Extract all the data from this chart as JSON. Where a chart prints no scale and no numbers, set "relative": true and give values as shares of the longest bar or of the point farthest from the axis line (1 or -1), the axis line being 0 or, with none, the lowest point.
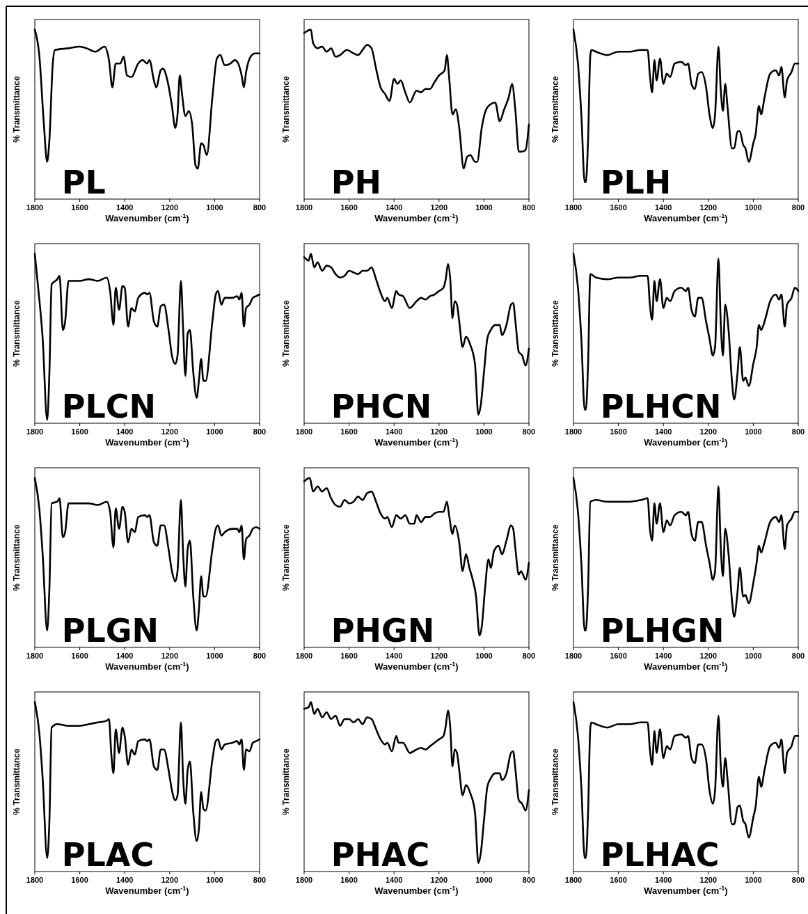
{
  "chart_data": [
    {
      "type": "line",
      "title": "PL",
      "xlabel": "Wavenumber (cm$^{-1}$)",
      "ylabel": "% Transmittance",
      "relative": true,
      "xlim": [
        1800,
        800
      ],
      "xticks": [
        1800,
        1600,
        1400,
        1200,
        1000,
        800
      ],
      "grid": false,
      "x": [
        1800,
        1780,
        1760,
        1745,
        1735,
        1720,
        1710,
        1650,
        1600,
        1570,
        1530,
        1490,
        1470,
        1455,
        1440,
        1420,
        1405,
        1390,
        1370,
        1340,
        1320,
        1300,
        1290,
        1270,
        1260,
        1240,
        1230,
        1210,
        1190,
        1175,
        1165,
        1155,
        1145,
        1130,
        1115,
        1100,
        1085,
        1075,
        1060,
        1050,
        1035,
        1010,
        990,
        975,
        955,
        930,
        910,
        895,
        880,
        870,
        860,
        840,
        820,
        800
      ],
      "series": [
        {
          "color": "#000000",
          "values": [
            1.0,
            0.85,
            0.45,
            0.22,
            0.35,
            0.8,
            0.88,
            0.89,
            0.9,
            0.89,
            0.87,
            0.9,
            0.82,
            0.66,
            0.8,
            0.8,
            0.84,
            0.73,
            0.72,
            0.8,
            0.82,
            0.8,
            0.82,
            0.7,
            0.66,
            0.76,
            0.77,
            0.7,
            0.55,
            0.42,
            0.5,
            0.73,
            0.62,
            0.49,
            0.52,
            0.44,
            0.2,
            0.18,
            0.33,
            0.32,
            0.26,
            0.6,
            0.83,
            0.85,
            0.79,
            0.8,
            0.82,
            0.8,
            0.73,
            0.66,
            0.75,
            0.84,
            0.86,
            0.86
          ]
        }
      ]
    },
    {
      "type": "line",
      "title": "PH",
      "xlabel": "Wavenumber (cm$^{-1}$)",
      "ylabel": "% Transmittance",
      "relative": true,
      "xlim": [
        1800,
        800
      ],
      "xticks": [
        1800,
        1600,
        1400,
        1200,
        1000,
        800
      ],
      "grid": false,
      "x": [
        1800,
        1770,
        1760,
        1740,
        1720,
        1700,
        1680,
        1660,
        1640,
        1610,
        1580,
        1560,
        1540,
        1520,
        1500,
        1480,
        1460,
        1440,
        1420,
        1400,
        1385,
        1370,
        1350,
        1330,
        1300,
        1280,
        1260,
        1240,
        1220,
        1200,
        1175,
        1165,
        1155,
        1140,
        1125,
        1110,
        1090,
        1075,
        1060,
        1040,
        1030,
        1010,
        990,
        970,
        950,
        930,
        910,
        890,
        875,
        860,
        845,
        830,
        815,
        800
      ],
      "series": [
        {
          "color": "#000000",
          "values": [
            0.98,
            1.0,
            0.92,
            0.89,
            0.9,
            0.87,
            0.89,
            0.84,
            0.85,
            0.88,
            0.86,
            0.85,
            0.88,
            0.91,
            0.89,
            0.77,
            0.66,
            0.62,
            0.58,
            0.71,
            0.68,
            0.7,
            0.63,
            0.57,
            0.64,
            0.63,
            0.65,
            0.65,
            0.69,
            0.73,
            0.76,
            0.85,
            0.72,
            0.5,
            0.53,
            0.42,
            0.18,
            0.25,
            0.26,
            0.22,
            0.22,
            0.42,
            0.53,
            0.56,
            0.57,
            0.46,
            0.53,
            0.6,
            0.68,
            0.52,
            0.28,
            0.28,
            0.29,
            0.44
          ]
        }
      ]
    },
    {
      "type": "line",
      "title": "PLH",
      "xlabel": "Wavenumber (cm$^{-1}$)",
      "ylabel": "% Transmittance",
      "relative": true,
      "xlim": [
        1800,
        800
      ],
      "xticks": [
        1800,
        1600,
        1400,
        1200,
        1000,
        800
      ],
      "grid": false,
      "x": [
        1800,
        1780,
        1765,
        1750,
        1745,
        1735,
        1725,
        1720,
        1700,
        1650,
        1600,
        1550,
        1500,
        1470,
        1460,
        1450,
        1440,
        1430,
        1415,
        1400,
        1385,
        1370,
        1350,
        1320,
        1300,
        1290,
        1275,
        1260,
        1245,
        1230,
        1210,
        1195,
        1180,
        1170,
        1155,
        1145,
        1135,
        1125,
        1115,
        1095,
        1085,
        1070,
        1060,
        1045,
        1035,
        1020,
        1000,
        990,
        975,
        965,
        950,
        925,
        900,
        885,
        875,
        860,
        850,
        830,
        815,
        800
      ],
      "series": [
        {
          "color": "#000000",
          "values": [
            1.0,
            0.8,
            0.5,
            0.1,
            0.1,
            0.35,
            0.85,
            0.88,
            0.87,
            0.85,
            0.87,
            0.87,
            0.88,
            0.88,
            0.73,
            0.63,
            0.82,
            0.7,
            0.83,
            0.68,
            0.74,
            0.72,
            0.8,
            0.81,
            0.79,
            0.8,
            0.68,
            0.65,
            0.74,
            0.75,
            0.66,
            0.5,
            0.42,
            0.5,
            0.9,
            0.65,
            0.52,
            0.68,
            0.55,
            0.3,
            0.3,
            0.4,
            0.4,
            0.32,
            0.3,
            0.22,
            0.33,
            0.38,
            0.55,
            0.5,
            0.6,
            0.74,
            0.76,
            0.73,
            0.78,
            0.6,
            0.7,
            0.75,
            0.8,
            0.8
          ]
        }
      ]
    },
    {
      "type": "line",
      "title": "PLCN",
      "xlabel": "Wavenumber (cm$^{-1}$)",
      "ylabel": "% Transmittance",
      "relative": true,
      "xlim": [
        1800,
        800
      ],
      "xticks": [
        1800,
        1600,
        1400,
        1200,
        1000,
        800
      ],
      "grid": false,
      "x": [
        1800,
        1785,
        1765,
        1745,
        1735,
        1725,
        1700,
        1690,
        1675,
        1665,
        1650,
        1600,
        1560,
        1520,
        1480,
        1465,
        1450,
        1440,
        1425,
        1410,
        1400,
        1385,
        1370,
        1355,
        1340,
        1310,
        1300,
        1290,
        1270,
        1255,
        1240,
        1225,
        1205,
        1190,
        1175,
        1165,
        1150,
        1140,
        1130,
        1120,
        1110,
        1095,
        1080,
        1070,
        1060,
        1050,
        1040,
        1010,
        995,
        985,
        970,
        955,
        920,
        900,
        890,
        880,
        870,
        860,
        845,
        830,
        815,
        800
      ],
      "series": [
        {
          "color": "#000000",
          "values": [
            1.0,
            0.8,
            0.5,
            0.02,
            0.3,
            0.82,
            0.85,
            0.87,
            0.55,
            0.6,
            0.84,
            0.84,
            0.85,
            0.84,
            0.86,
            0.78,
            0.58,
            0.8,
            0.67,
            0.81,
            0.8,
            0.57,
            0.68,
            0.66,
            0.74,
            0.77,
            0.76,
            0.77,
            0.6,
            0.57,
            0.69,
            0.7,
            0.55,
            0.4,
            0.35,
            0.4,
            0.84,
            0.55,
            0.28,
            0.53,
            0.55,
            0.3,
            0.15,
            0.25,
            0.38,
            0.25,
            0.25,
            0.6,
            0.76,
            0.78,
            0.7,
            0.74,
            0.74,
            0.75,
            0.73,
            0.77,
            0.57,
            0.68,
            0.7,
            0.74,
            0.75,
            0.76
          ]
        }
      ]
    },
    {
      "type": "line",
      "title": "PHCN",
      "xlabel": "Wavenumber (cm$^{-1}$)",
      "ylabel": "% Transmittance",
      "relative": true,
      "xlim": [
        1800,
        800
      ],
      "xticks": [
        1800,
        1600,
        1400,
        1200,
        1000,
        800
      ],
      "grid": false,
      "x": [
        1800,
        1780,
        1770,
        1755,
        1740,
        1720,
        1700,
        1680,
        1660,
        1640,
        1620,
        1600,
        1580,
        1560,
        1540,
        1520,
        1500,
        1480,
        1460,
        1440,
        1430,
        1410,
        1390,
        1380,
        1360,
        1330,
        1300,
        1280,
        1260,
        1240,
        1220,
        1200,
        1180,
        1170,
        1160,
        1150,
        1140,
        1130,
        1120,
        1110,
        1095,
        1080,
        1060,
        1040,
        1025,
        1015,
        1000,
        985,
        970,
        950,
        930,
        920,
        900,
        880,
        870,
        860,
        845,
        830,
        815,
        800
      ],
      "series": [
        {
          "color": "#000000",
          "values": [
            0.98,
            0.96,
            1.0,
            0.92,
            0.95,
            0.9,
            0.93,
            0.92,
            0.88,
            0.86,
            0.87,
            0.9,
            0.89,
            0.88,
            0.9,
            0.9,
            0.92,
            0.85,
            0.77,
            0.72,
            0.74,
            0.68,
            0.78,
            0.76,
            0.75,
            0.68,
            0.72,
            0.74,
            0.73,
            0.75,
            0.76,
            0.78,
            0.8,
            0.85,
            0.94,
            0.85,
            0.62,
            0.72,
            0.7,
            0.6,
            0.45,
            0.51,
            0.46,
            0.35,
            0.05,
            0.1,
            0.3,
            0.5,
            0.55,
            0.58,
            0.58,
            0.52,
            0.58,
            0.7,
            0.71,
            0.6,
            0.42,
            0.4,
            0.34,
            0.44
          ]
        }
      ]
    },
    {
      "type": "line",
      "title": "PLHCN",
      "xlabel": "Wavenumber (cm$^{-1}$)",
      "ylabel": "% Transmittance",
      "relative": true,
      "xlim": [
        1800,
        800
      ],
      "xticks": [
        1800,
        1600,
        1400,
        1200,
        1000,
        800
      ],
      "grid": false,
      "x": [
        1800,
        1780,
        1765,
        1750,
        1745,
        1735,
        1725,
        1700,
        1650,
        1600,
        1550,
        1500,
        1470,
        1460,
        1450,
        1440,
        1430,
        1415,
        1400,
        1385,
        1370,
        1350,
        1320,
        1300,
        1290,
        1275,
        1260,
        1245,
        1230,
        1210,
        1195,
        1180,
        1170,
        1155,
        1145,
        1135,
        1125,
        1110,
        1095,
        1085,
        1070,
        1060,
        1045,
        1035,
        1020,
        1000,
        985,
        975,
        965,
        950,
        925,
        900,
        885,
        875,
        860,
        850,
        830,
        815,
        800
      ],
      "series": [
        {
          "color": "#000000",
          "values": [
            1.0,
            0.8,
            0.5,
            0.08,
            0.08,
            0.35,
            0.88,
            0.86,
            0.85,
            0.86,
            0.86,
            0.87,
            0.87,
            0.7,
            0.61,
            0.84,
            0.72,
            0.85,
            0.68,
            0.74,
            0.72,
            0.78,
            0.8,
            0.78,
            0.8,
            0.67,
            0.63,
            0.74,
            0.74,
            0.6,
            0.5,
            0.4,
            0.45,
            0.97,
            0.6,
            0.4,
            0.7,
            0.55,
            0.25,
            0.14,
            0.3,
            0.45,
            0.25,
            0.27,
            0.22,
            0.35,
            0.45,
            0.58,
            0.55,
            0.6,
            0.72,
            0.76,
            0.73,
            0.76,
            0.57,
            0.7,
            0.74,
            0.8,
            0.78
          ]
        }
      ]
    },
    {
      "type": "line",
      "title": "PLGN",
      "xlabel": "Wavenumber (cm$^{-1}$)",
      "ylabel": "% Transmittance",
      "relative": true,
      "xlim": [
        1800,
        800
      ],
      "xticks": [
        1800,
        1600,
        1400,
        1200,
        1000,
        800
      ],
      "grid": false,
      "x": [
        1800,
        1780,
        1765,
        1745,
        1735,
        1725,
        1700,
        1690,
        1675,
        1665,
        1650,
        1600,
        1560,
        1520,
        1480,
        1465,
        1450,
        1440,
        1425,
        1410,
        1400,
        1385,
        1370,
        1355,
        1340,
        1310,
        1300,
        1290,
        1270,
        1255,
        1240,
        1225,
        1205,
        1190,
        1175,
        1165,
        1150,
        1140,
        1130,
        1120,
        1110,
        1095,
        1080,
        1070,
        1060,
        1050,
        1040,
        1010,
        995,
        985,
        970,
        955,
        920,
        900,
        890,
        880,
        870,
        860,
        845,
        830,
        815,
        800
      ],
      "series": [
        {
          "color": "#000000",
          "values": [
            1.0,
            0.82,
            0.55,
            0.1,
            0.35,
            0.85,
            0.86,
            0.88,
            0.65,
            0.68,
            0.85,
            0.85,
            0.85,
            0.84,
            0.86,
            0.8,
            0.59,
            0.82,
            0.7,
            0.83,
            0.8,
            0.62,
            0.7,
            0.68,
            0.77,
            0.78,
            0.77,
            0.78,
            0.62,
            0.6,
            0.72,
            0.72,
            0.58,
            0.45,
            0.39,
            0.45,
            0.87,
            0.55,
            0.36,
            0.58,
            0.63,
            0.3,
            0.1,
            0.22,
            0.42,
            0.3,
            0.3,
            0.58,
            0.7,
            0.72,
            0.66,
            0.68,
            0.7,
            0.7,
            0.68,
            0.72,
            0.52,
            0.64,
            0.66,
            0.7,
            0.71,
            0.7
          ]
        }
      ]
    },
    {
      "type": "line",
      "title": "PHGN",
      "xlabel": "Wavenumber (cm$^{-1}$)",
      "ylabel": "% Transmittance",
      "relative": true,
      "xlim": [
        1800,
        800
      ],
      "xticks": [
        1800,
        1600,
        1400,
        1200,
        1000,
        800
      ],
      "grid": false,
      "x": [
        1800,
        1775,
        1760,
        1740,
        1720,
        1700,
        1680,
        1660,
        1640,
        1620,
        1600,
        1580,
        1560,
        1540,
        1520,
        1500,
        1480,
        1460,
        1440,
        1430,
        1410,
        1390,
        1370,
        1350,
        1330,
        1310,
        1300,
        1280,
        1260,
        1240,
        1220,
        1200,
        1180,
        1165,
        1155,
        1140,
        1130,
        1110,
        1095,
        1080,
        1065,
        1050,
        1035,
        1020,
        1010,
        995,
        980,
        970,
        955,
        935,
        920,
        900,
        880,
        870,
        860,
        845,
        835,
        815,
        800
      ],
      "series": [
        {
          "color": "#000000",
          "values": [
            0.98,
            1.0,
            0.92,
            0.95,
            0.92,
            0.94,
            0.88,
            0.84,
            0.83,
            0.87,
            0.85,
            0.86,
            0.89,
            0.87,
            0.91,
            0.92,
            0.86,
            0.79,
            0.76,
            0.77,
            0.71,
            0.78,
            0.76,
            0.78,
            0.73,
            0.73,
            0.78,
            0.74,
            0.77,
            0.77,
            0.79,
            0.8,
            0.8,
            0.86,
            0.78,
            0.67,
            0.72,
            0.62,
            0.45,
            0.55,
            0.47,
            0.4,
            0.3,
            0.07,
            0.12,
            0.35,
            0.52,
            0.47,
            0.57,
            0.6,
            0.55,
            0.63,
            0.72,
            0.7,
            0.58,
            0.43,
            0.45,
            0.4,
            0.5
          ]
        }
      ]
    },
    {
      "type": "line",
      "title": "PLHGN",
      "xlabel": "Wavenumber (cm$^{-1}$)",
      "ylabel": "% Transmittance",
      "relative": true,
      "xlim": [
        1800,
        800
      ],
      "xticks": [
        1800,
        1600,
        1400,
        1200,
        1000,
        800
      ],
      "grid": false,
      "x": [
        1800,
        1780,
        1765,
        1750,
        1745,
        1735,
        1725,
        1700,
        1650,
        1600,
        1550,
        1500,
        1470,
        1460,
        1450,
        1440,
        1430,
        1415,
        1400,
        1385,
        1370,
        1350,
        1320,
        1300,
        1290,
        1275,
        1260,
        1245,
        1230,
        1210,
        1195,
        1180,
        1170,
        1155,
        1145,
        1135,
        1125,
        1110,
        1095,
        1085,
        1070,
        1060,
        1045,
        1035,
        1020,
        1000,
        985,
        975,
        965,
        950,
        925,
        900,
        885,
        875,
        860,
        850,
        830,
        815,
        800
      ],
      "series": [
        {
          "color": "#000000",
          "values": [
            1.0,
            0.8,
            0.5,
            0.1,
            0.1,
            0.35,
            0.86,
            0.87,
            0.86,
            0.86,
            0.86,
            0.87,
            0.88,
            0.7,
            0.63,
            0.85,
            0.73,
            0.85,
            0.68,
            0.75,
            0.72,
            0.78,
            0.8,
            0.78,
            0.8,
            0.67,
            0.63,
            0.74,
            0.74,
            0.6,
            0.5,
            0.4,
            0.45,
            0.95,
            0.6,
            0.42,
            0.7,
            0.55,
            0.28,
            0.18,
            0.33,
            0.47,
            0.3,
            0.31,
            0.26,
            0.38,
            0.5,
            0.6,
            0.56,
            0.62,
            0.74,
            0.77,
            0.74,
            0.78,
            0.58,
            0.72,
            0.76,
            0.8,
            0.8
          ]
        }
      ]
    },
    {
      "type": "line",
      "title": "PLAC",
      "xlabel": "Wavenumber (cm$^{-1}$)",
      "ylabel": "% Transmittance",
      "relative": true,
      "xlim": [
        1800,
        800
      ],
      "xticks": [
        1800,
        1600,
        1400,
        1200,
        1000,
        800
      ],
      "grid": false,
      "x": [
        1800,
        1780,
        1765,
        1745,
        1735,
        1725,
        1700,
        1650,
        1600,
        1560,
        1520,
        1480,
        1470,
        1460,
        1450,
        1440,
        1425,
        1410,
        1400,
        1385,
        1370,
        1355,
        1340,
        1310,
        1300,
        1290,
        1270,
        1255,
        1240,
        1225,
        1205,
        1190,
        1175,
        1165,
        1150,
        1140,
        1130,
        1120,
        1110,
        1095,
        1080,
        1070,
        1060,
        1050,
        1040,
        1010,
        995,
        985,
        970,
        955,
        920,
        900,
        890,
        880,
        870,
        860,
        845,
        830,
        815,
        800
      ],
      "series": [
        {
          "color": "#000000",
          "values": [
            1.0,
            0.82,
            0.55,
            0.08,
            0.3,
            0.85,
            0.87,
            0.86,
            0.86,
            0.87,
            0.88,
            0.89,
            0.9,
            0.7,
            0.58,
            0.84,
            0.7,
            0.85,
            0.8,
            0.63,
            0.72,
            0.69,
            0.77,
            0.78,
            0.77,
            0.78,
            0.62,
            0.6,
            0.72,
            0.72,
            0.6,
            0.48,
            0.42,
            0.45,
            0.88,
            0.55,
            0.4,
            0.6,
            0.65,
            0.35,
            0.18,
            0.25,
            0.47,
            0.37,
            0.36,
            0.66,
            0.77,
            0.78,
            0.72,
            0.75,
            0.76,
            0.77,
            0.75,
            0.78,
            0.6,
            0.72,
            0.71,
            0.76,
            0.77,
            0.78
          ]
        }
      ]
    },
    {
      "type": "line",
      "title": "PHAC",
      "xlabel": "Wavenumber (cm$^{-1}$)",
      "ylabel": "% Transmittance",
      "relative": true,
      "xlim": [
        1800,
        800
      ],
      "xticks": [
        1800,
        1600,
        1400,
        1200,
        1000,
        800
      ],
      "grid": false,
      "x": [
        1800,
        1780,
        1770,
        1755,
        1740,
        1720,
        1700,
        1680,
        1660,
        1640,
        1620,
        1600,
        1580,
        1560,
        1540,
        1520,
        1500,
        1480,
        1460,
        1440,
        1430,
        1410,
        1390,
        1380,
        1360,
        1330,
        1300,
        1280,
        1260,
        1240,
        1220,
        1200,
        1180,
        1170,
        1160,
        1150,
        1140,
        1130,
        1120,
        1110,
        1095,
        1080,
        1060,
        1040,
        1025,
        1015,
        1000,
        985,
        970,
        950,
        930,
        920,
        900,
        880,
        870,
        860,
        845,
        830,
        815,
        800
      ],
      "series": [
        {
          "color": "#000000",
          "values": [
            0.96,
            0.97,
            1.0,
            0.93,
            0.96,
            0.91,
            0.94,
            0.9,
            0.92,
            0.86,
            0.9,
            0.9,
            0.88,
            0.9,
            0.87,
            0.91,
            0.9,
            0.84,
            0.78,
            0.75,
            0.76,
            0.71,
            0.8,
            0.76,
            0.76,
            0.7,
            0.72,
            0.73,
            0.72,
            0.74,
            0.76,
            0.78,
            0.8,
            0.86,
            0.95,
            0.85,
            0.62,
            0.72,
            0.7,
            0.6,
            0.45,
            0.51,
            0.46,
            0.35,
            0.05,
            0.1,
            0.3,
            0.5,
            0.55,
            0.58,
            0.58,
            0.54,
            0.58,
            0.7,
            0.71,
            0.6,
            0.42,
            0.4,
            0.36,
            0.48
          ]
        }
      ]
    },
    {
      "type": "line",
      "title": "PLHAC",
      "xlabel": "Wavenumber (cm$^{-1}$)",
      "ylabel": "% Transmittance",
      "relative": true,
      "xlim": [
        1800,
        800
      ],
      "xticks": [
        1800,
        1600,
        1400,
        1200,
        1000,
        800
      ],
      "grid": false,
      "x": [
        1800,
        1780,
        1765,
        1750,
        1745,
        1735,
        1725,
        1720,
        1700,
        1650,
        1600,
        1550,
        1500,
        1470,
        1460,
        1450,
        1440,
        1430,
        1415,
        1400,
        1385,
        1370,
        1350,
        1320,
        1300,
        1290,
        1275,
        1260,
        1245,
        1230,
        1210,
        1195,
        1180,
        1170,
        1155,
        1145,
        1135,
        1125,
        1115,
        1095,
        1085,
        1070,
        1060,
        1045,
        1035,
        1020,
        1000,
        990,
        975,
        965,
        950,
        925,
        900,
        885,
        875,
        860,
        850,
        830,
        815,
        800
      ],
      "series": [
        {
          "color": "#000000",
          "values": [
            1.0,
            0.8,
            0.5,
            0.08,
            0.08,
            0.35,
            0.85,
            0.88,
            0.87,
            0.85,
            0.87,
            0.87,
            0.88,
            0.88,
            0.72,
            0.63,
            0.83,
            0.7,
            0.84,
            0.67,
            0.74,
            0.72,
            0.8,
            0.81,
            0.79,
            0.8,
            0.67,
            0.64,
            0.75,
            0.75,
            0.66,
            0.48,
            0.4,
            0.48,
            0.92,
            0.63,
            0.5,
            0.67,
            0.55,
            0.28,
            0.28,
            0.38,
            0.39,
            0.3,
            0.28,
            0.2,
            0.32,
            0.38,
            0.56,
            0.5,
            0.6,
            0.74,
            0.76,
            0.73,
            0.78,
            0.58,
            0.7,
            0.74,
            0.8,
            0.8
          ]
        }
      ]
    }
  ]
}
